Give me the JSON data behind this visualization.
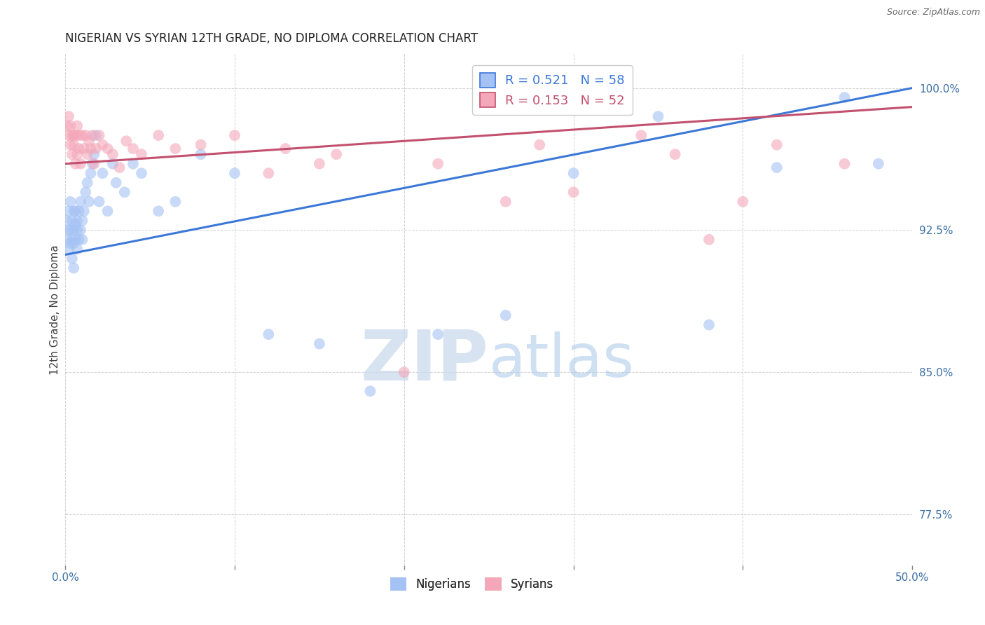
{
  "title": "NIGERIAN VS SYRIAN 12TH GRADE, NO DIPLOMA CORRELATION CHART",
  "source": "Source: ZipAtlas.com",
  "ylabel": "12th Grade, No Diploma",
  "xlim": [
    0.0,
    0.5
  ],
  "ylim": [
    0.748,
    1.018
  ],
  "xticks": [
    0.0,
    0.1,
    0.2,
    0.3,
    0.4,
    0.5
  ],
  "xticklabels": [
    "0.0%",
    "",
    "",
    "",
    "",
    "50.0%"
  ],
  "yticks": [
    0.775,
    0.85,
    0.925,
    1.0
  ],
  "yticklabels": [
    "77.5%",
    "85.0%",
    "92.5%",
    "100.0%"
  ],
  "nigerian_R": 0.521,
  "nigerian_N": 58,
  "syrian_R": 0.153,
  "syrian_N": 52,
  "nigerian_color": "#a4c2f4",
  "syrian_color": "#f4a7b9",
  "nigerian_line_color": "#3c78d8",
  "syrian_line_color": "#c2506e",
  "grid_color": "#cccccc",
  "watermark_zip": "ZIP",
  "watermark_atlas": "atlas",
  "legend_nigerian": "Nigerians",
  "legend_syrian": "Syrians",
  "nigerian_x": [
    0.001,
    0.001,
    0.002,
    0.002,
    0.002,
    0.003,
    0.003,
    0.003,
    0.004,
    0.004,
    0.004,
    0.005,
    0.005,
    0.005,
    0.005,
    0.006,
    0.006,
    0.006,
    0.007,
    0.007,
    0.007,
    0.008,
    0.008,
    0.009,
    0.009,
    0.01,
    0.01,
    0.011,
    0.012,
    0.013,
    0.014,
    0.015,
    0.016,
    0.017,
    0.018,
    0.02,
    0.022,
    0.025,
    0.028,
    0.03,
    0.035,
    0.04,
    0.045,
    0.055,
    0.065,
    0.08,
    0.1,
    0.12,
    0.15,
    0.18,
    0.22,
    0.26,
    0.3,
    0.35,
    0.38,
    0.42,
    0.46,
    0.48
  ],
  "nigerian_y": [
    0.93,
    0.92,
    0.935,
    0.925,
    0.915,
    0.94,
    0.925,
    0.918,
    0.93,
    0.92,
    0.91,
    0.925,
    0.935,
    0.918,
    0.905,
    0.928,
    0.92,
    0.935,
    0.925,
    0.915,
    0.93,
    0.935,
    0.92,
    0.94,
    0.925,
    0.93,
    0.92,
    0.935,
    0.945,
    0.95,
    0.94,
    0.955,
    0.96,
    0.965,
    0.975,
    0.94,
    0.955,
    0.935,
    0.96,
    0.95,
    0.945,
    0.96,
    0.955,
    0.935,
    0.94,
    0.965,
    0.955,
    0.87,
    0.865,
    0.84,
    0.87,
    0.88,
    0.955,
    0.985,
    0.875,
    0.958,
    0.995,
    0.96
  ],
  "syrian_x": [
    0.001,
    0.002,
    0.002,
    0.003,
    0.003,
    0.004,
    0.004,
    0.005,
    0.005,
    0.006,
    0.006,
    0.007,
    0.007,
    0.008,
    0.008,
    0.009,
    0.01,
    0.011,
    0.012,
    0.013,
    0.014,
    0.015,
    0.016,
    0.017,
    0.018,
    0.02,
    0.022,
    0.025,
    0.028,
    0.032,
    0.036,
    0.04,
    0.045,
    0.055,
    0.065,
    0.08,
    0.1,
    0.13,
    0.16,
    0.22,
    0.28,
    0.34,
    0.38,
    0.42,
    0.46,
    0.4,
    0.36,
    0.3,
    0.26,
    0.2,
    0.15,
    0.12
  ],
  "syrian_y": [
    0.98,
    0.985,
    0.975,
    0.98,
    0.97,
    0.975,
    0.965,
    0.97,
    0.975,
    0.975,
    0.96,
    0.98,
    0.965,
    0.975,
    0.968,
    0.96,
    0.975,
    0.968,
    0.975,
    0.965,
    0.972,
    0.968,
    0.975,
    0.96,
    0.968,
    0.975,
    0.97,
    0.968,
    0.965,
    0.958,
    0.972,
    0.968,
    0.965,
    0.975,
    0.968,
    0.97,
    0.975,
    0.968,
    0.965,
    0.96,
    0.97,
    0.975,
    0.92,
    0.97,
    0.96,
    0.94,
    0.965,
    0.945,
    0.94,
    0.85,
    0.96,
    0.955
  ],
  "nig_trend_x0": 0.0,
  "nig_trend_y0": 0.912,
  "nig_trend_x1": 0.5,
  "nig_trend_y1": 1.0,
  "syr_trend_x0": 0.0,
  "syr_trend_y0": 0.96,
  "syr_trend_x1": 0.5,
  "syr_trend_y1": 0.99
}
